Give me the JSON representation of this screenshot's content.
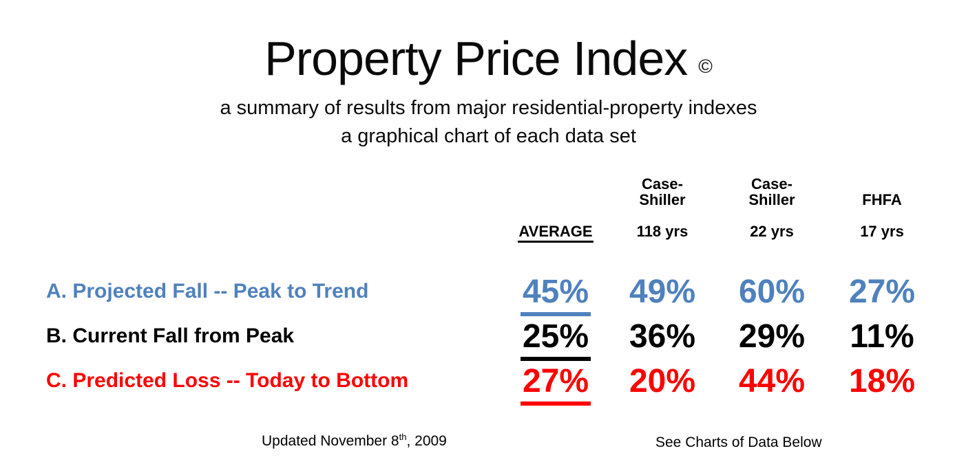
{
  "header": {
    "title": "Property Price Index",
    "copyright": "©",
    "subtitle1": "a summary of results from major residential-property indexes",
    "subtitle2": "a graphical chart of each data set"
  },
  "table": {
    "col_headers": {
      "col2_line1": "Case-",
      "col2_line2": "Shiller",
      "col3_line1": "Case-",
      "col3_line2": "Shiller",
      "col4": "FHFA",
      "col1_period": "AVERAGE",
      "col2_period": "118 yrs",
      "col3_period": "22 yrs",
      "col4_period": "17 yrs"
    },
    "rows": [
      {
        "label": "A. Projected Fall -- Peak to Trend",
        "color": "#4F81BD",
        "values": [
          "45%",
          "49%",
          "60%",
          "27%"
        ]
      },
      {
        "label": "B. Current Fall from Peak",
        "color": "#000000",
        "values": [
          "25%",
          "36%",
          "29%",
          "11%"
        ]
      },
      {
        "label": "C. Predicted Loss -- Today to Bottom",
        "color": "#FF0000",
        "values": [
          "27%",
          "20%",
          "44%",
          "18%"
        ]
      }
    ]
  },
  "footer": {
    "updated_prefix": "Updated November 8",
    "updated_sup": "th",
    "updated_suffix": ", 2009",
    "see_charts": "See Charts of Data Below"
  },
  "colors": {
    "row_a_blue": "#4F81BD",
    "row_b_black": "#000000",
    "row_c_red": "#FF0000",
    "background": "#FFFFFF"
  },
  "chart_data": {
    "type": "table",
    "title": "Property Price Index",
    "columns": [
      "AVERAGE",
      "Case-Shiller 118 yrs",
      "Case-Shiller 22 yrs",
      "FHFA 17 yrs"
    ],
    "rows": [
      {
        "label": "A. Projected Fall -- Peak to Trend",
        "values_pct": [
          45,
          49,
          60,
          27
        ]
      },
      {
        "label": "B. Current Fall from Peak",
        "values_pct": [
          25,
          36,
          29,
          11
        ]
      },
      {
        "label": "C. Predicted Loss -- Today to Bottom",
        "values_pct": [
          27,
          20,
          44,
          18
        ]
      }
    ]
  }
}
